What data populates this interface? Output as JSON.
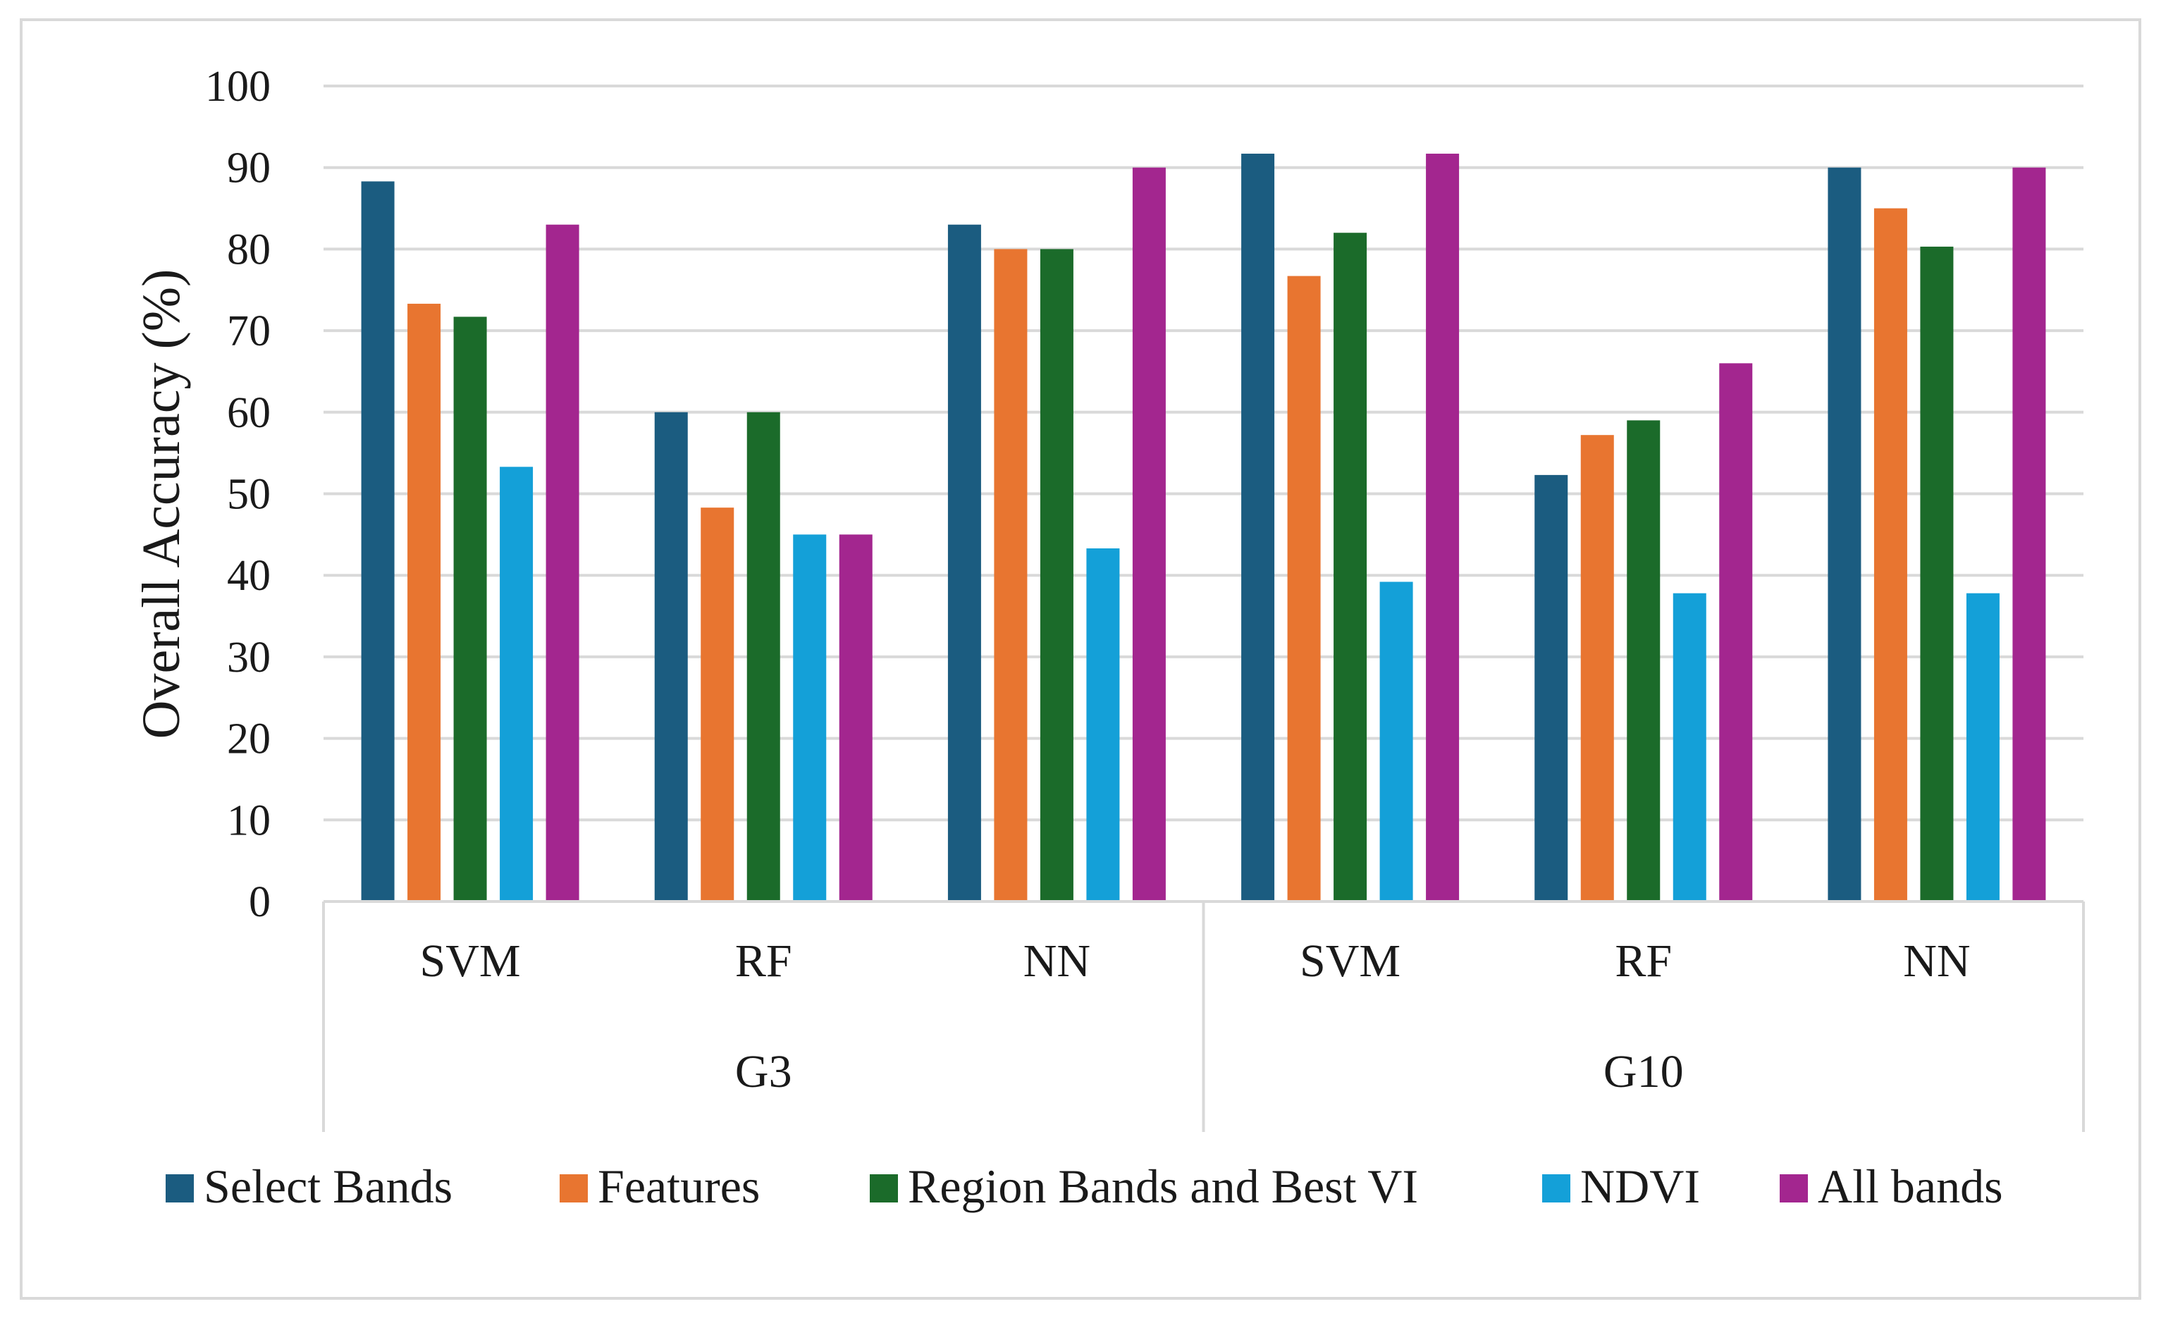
{
  "chart_data": {
    "type": "bar",
    "title": "",
    "xlabel": "",
    "ylabel": "Overall Accuracy (%)",
    "ylim": [
      0,
      100
    ],
    "yticks": [
      0,
      10,
      20,
      30,
      40,
      50,
      60,
      70,
      80,
      90,
      100
    ],
    "grid": true,
    "legend_position": "bottom",
    "groups": [
      {
        "name": "G3",
        "categories": [
          "SVM",
          "RF",
          "NN"
        ]
      },
      {
        "name": "G10",
        "categories": [
          "SVM",
          "RF",
          "NN"
        ]
      }
    ],
    "series": [
      {
        "name": "Select Bands",
        "color": "#1b5c80",
        "values": [
          88.3,
          60,
          83,
          91.7,
          52.3,
          90
        ]
      },
      {
        "name": "Features",
        "color": "#e87530",
        "values": [
          73.3,
          48.3,
          80,
          76.7,
          57.2,
          85
        ]
      },
      {
        "name": "Region Bands and Best VI",
        "color": "#1b6b2a",
        "values": [
          71.7,
          60,
          80,
          82,
          59,
          80.3
        ]
      },
      {
        "name": "NDVI",
        "color": "#14a0d8",
        "values": [
          53.3,
          45,
          43.3,
          39.2,
          37.8,
          37.8
        ]
      },
      {
        "name": "All bands",
        "color": "#a3268f",
        "values": [
          83,
          45,
          90,
          91.7,
          66,
          90
        ]
      }
    ]
  }
}
